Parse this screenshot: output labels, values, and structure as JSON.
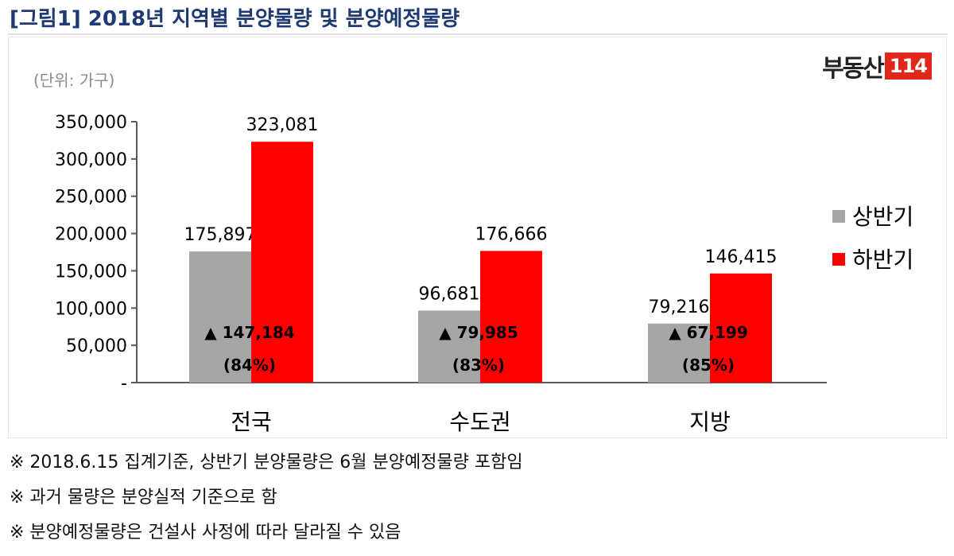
{
  "title": "[그림1] 2018년 지역별 분양물량 및 분양예정물량",
  "brand": {
    "text": "부동산",
    "box": "114"
  },
  "notes": [
    "※ 2018.6.15 집계기준, 상반기 분양물량은 6월 분양예정물량 포함임",
    "※ 과거 물량은 분양실적 기준으로 함",
    "※ 분양예정물량은 건설사 사정에 따라 달라질 수 있음"
  ],
  "chart_data": {
    "type": "bar",
    "unit_label": "(단위: 가구)",
    "categories": [
      "전국",
      "수도권",
      "지방"
    ],
    "series": [
      {
        "name": "상반기",
        "color": "#a6a6a6",
        "values": [
          175897,
          96681,
          79216
        ]
      },
      {
        "name": "하반기",
        "color": "#ff0000",
        "values": [
          323081,
          176666,
          146415
        ]
      }
    ],
    "value_labels": [
      [
        "175,897",
        "96,681",
        "79,216"
      ],
      [
        "323,081",
        "176,666",
        "146,415"
      ]
    ],
    "annotations": [
      {
        "diff": "▲ 147,184",
        "pct": "(84%)"
      },
      {
        "diff": "▲ 79,985",
        "pct": "(83%)"
      },
      {
        "diff": "▲ 67,199",
        "pct": "(85%)"
      }
    ],
    "yticks": [
      0,
      50000,
      100000,
      150000,
      200000,
      250000,
      300000,
      350000
    ],
    "ytick_labels": [
      "-",
      "50,000",
      "100,000",
      "150,000",
      "200,000",
      "250,000",
      "300,000",
      "350,000"
    ],
    "ylim": [
      0,
      350000
    ],
    "grid": false,
    "legend_position": "right"
  }
}
